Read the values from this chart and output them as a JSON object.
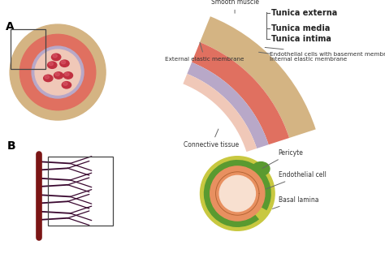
{
  "bg_color": "#ffffff",
  "label_A": "A",
  "label_B": "B",
  "panel_A_circle": {
    "outer_color": "#D4B483",
    "middle_color": "#E07060",
    "inner_ring_color": "#B8A8C8",
    "lumen_color": "#F0C8B8",
    "rbc_color": "#C03040",
    "rbc_highlight": "#E06070"
  },
  "panel_A_arc": {
    "tunica_externa_color": "#D4B483",
    "tunica_media_color": "#E07060",
    "tunica_intima_color": "#B8A8C8",
    "endothelial_color": "#F0C8B8"
  },
  "panel_B_tree": {
    "vessel_color": "#7B1515",
    "capillary_color": "#3A0830"
  },
  "panel_B_circle": {
    "basal_lamina_color": "#C8C840",
    "pericyte_color": "#5A9A30",
    "endothelial_color": "#E89060",
    "lumen_color": "#F8E0D0"
  },
  "labels": {
    "smooth_muscle": "Smooth muscle",
    "external_elastic": "External elastic membrane",
    "connective_tissue": "Connective tissue",
    "tunica_externa": "Tunica externa",
    "tunica_media": "Tunica media",
    "tunica_intima": "Tunica intima",
    "endothelial_basement": "Endothelial cells with basement membrane",
    "internal_elastic": "Internal elastic membrane",
    "pericyte": "Pericyte",
    "endothelial_cell": "Endothelial cell",
    "basal_lamina": "Basal lamina"
  },
  "font_size": 5.5,
  "tunica_font_size": 7.0
}
